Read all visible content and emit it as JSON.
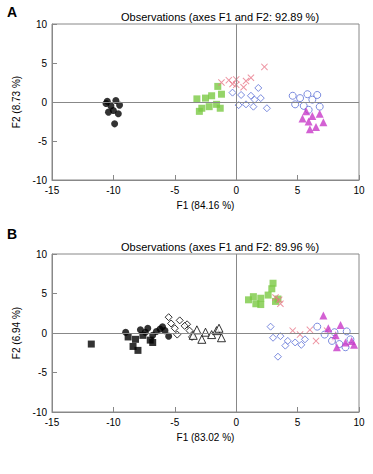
{
  "chart_data": [
    {
      "type": "scatter",
      "panel": "A",
      "title": "Observations (axes F1 and F2: 92.89 %)",
      "xlabel": "F1 (84.16 %)",
      "ylabel": "F2 (8.73 %)",
      "xlim": [
        -15,
        10
      ],
      "xticks": [
        -15,
        -10,
        -5,
        0,
        5,
        10
      ],
      "ylim": [
        -10,
        10
      ],
      "yticks": [
        -10,
        -5,
        0,
        5,
        10
      ],
      "grid": false,
      "legend": "none",
      "series": [
        {
          "color": "#000000",
          "marker": "circle",
          "x": [
            -10.5,
            -9.8,
            -10.2,
            -9.5,
            -10.0,
            -10.4,
            -9.6,
            -9.9,
            -10.6
          ],
          "y": [
            0.1,
            0.2,
            -0.5,
            -0.4,
            -1.1,
            -1.3,
            -1.5,
            -2.8,
            -0.2
          ]
        },
        {
          "color": "#7ac943",
          "marker": "square",
          "x": [
            -3.2,
            -2.5,
            -2.0,
            -1.2,
            -1.5,
            -2.8,
            -2.2,
            -1.6,
            -3.0,
            -1.3
          ],
          "y": [
            0.4,
            0.5,
            0.8,
            1.0,
            2.0,
            -0.8,
            -0.6,
            -0.3,
            -1.2,
            -0.8
          ]
        },
        {
          "color": "#e8788a",
          "marker": "x",
          "x": [
            -1.2,
            -0.6,
            0.0,
            -0.3,
            0.8,
            2.3,
            1.2,
            0.6,
            0.0
          ],
          "y": [
            2.5,
            2.8,
            2.9,
            2.3,
            2.7,
            4.5,
            3.1,
            1.9,
            2.2
          ]
        },
        {
          "color": "#5b6fd6",
          "marker": "diamond-open",
          "x": [
            -0.3,
            0.4,
            1.2,
            1.5,
            0.8,
            1.4,
            2.0,
            2.5,
            1.8,
            0.2
          ],
          "y": [
            1.2,
            0.9,
            0.8,
            0.3,
            -0.3,
            -0.6,
            0.5,
            -0.8,
            1.8,
            -0.4
          ]
        },
        {
          "color": "#5b6fd6",
          "marker": "circle-open",
          "x": [
            4.6,
            5.2,
            5.8,
            6.2,
            6.6,
            5.5,
            6.8,
            4.8,
            5.9
          ],
          "y": [
            0.8,
            0.5,
            1.0,
            0.3,
            0.9,
            -0.5,
            -0.6,
            -0.3,
            -1.0
          ]
        },
        {
          "color": "#c839c8",
          "marker": "triangle",
          "x": [
            5.7,
            6.2,
            6.8,
            5.9,
            6.5,
            7.1,
            6.0,
            5.4
          ],
          "y": [
            -1.2,
            -1.8,
            -1.5,
            -2.5,
            -3.2,
            -2.6,
            -3.5,
            -2.1
          ]
        }
      ]
    },
    {
      "type": "scatter",
      "panel": "B",
      "title": "Observations (axes F1 and F2: 89.96 %)",
      "xlabel": "F1 (83.02 %)",
      "ylabel": "F2 (6.94 %)",
      "xlim": [
        -15,
        10
      ],
      "xticks": [
        -15,
        -10,
        -5,
        0,
        5,
        10
      ],
      "ylim": [
        -10,
        10
      ],
      "yticks": [
        -10,
        -5,
        0,
        5,
        10
      ],
      "grid": false,
      "legend": "none",
      "series": [
        {
          "color": "#000000",
          "marker": "square",
          "x": [
            -11.8,
            -8.8,
            -8.4,
            -8.0,
            -7.6,
            -7.0,
            -6.8,
            -8.2
          ],
          "y": [
            -1.4,
            -0.5,
            -1.7,
            -2.2,
            -0.3,
            -0.9,
            -1.2,
            -0.8
          ]
        },
        {
          "color": "#000000",
          "marker": "circle",
          "x": [
            -9.0,
            -7.8,
            -7.2,
            -6.5,
            -6.2,
            -5.8,
            -6.8,
            -5.5,
            -7.4,
            -6.0
          ],
          "y": [
            0.1,
            0.4,
            0.6,
            0.2,
            0.5,
            0.3,
            -0.3,
            -0.4,
            0.1,
            0.8
          ]
        },
        {
          "color": "#000000",
          "marker": "diamond-open",
          "x": [
            -5.5,
            -4.6,
            -4.0,
            -5.0,
            -3.8,
            -4.8,
            -3.6,
            -4.2,
            -5.3
          ],
          "y": [
            2.0,
            1.6,
            1.1,
            0.6,
            0.3,
            -0.2,
            -0.5,
            0.9,
            1.2
          ]
        },
        {
          "color": "#000000",
          "marker": "triangle-open",
          "x": [
            -3.2,
            -2.5,
            -2.0,
            -1.6,
            -1.2,
            -2.8,
            -1.4,
            -3.5
          ],
          "y": [
            0.4,
            0.1,
            -0.2,
            0.3,
            -0.6,
            -0.8,
            0.6,
            -0.3
          ]
        },
        {
          "color": "#7ac943",
          "marker": "square",
          "x": [
            1.0,
            1.4,
            2.0,
            2.6,
            3.0,
            2.9,
            3.2,
            2.0,
            1.6,
            3.4
          ],
          "y": [
            4.2,
            4.6,
            4.4,
            4.8,
            6.3,
            5.6,
            4.0,
            3.6,
            3.7,
            4.3
          ]
        },
        {
          "color": "#e8788a",
          "marker": "x",
          "x": [
            3.2,
            3.6,
            3.5,
            4.6,
            5.2,
            6.0,
            7.4,
            7.9,
            6.5
          ],
          "y": [
            4.5,
            3.7,
            4.2,
            0.3,
            -0.2,
            0.4,
            0.3,
            -0.9,
            -1.0
          ]
        },
        {
          "color": "#5b6fd6",
          "marker": "diamond-open",
          "x": [
            2.8,
            3.6,
            4.2,
            4.0,
            3.4,
            4.8,
            5.3,
            5.6,
            3.0
          ],
          "y": [
            0.8,
            -0.4,
            -1.0,
            -1.6,
            -3.0,
            -1.2,
            -1.5,
            -0.8,
            -0.6
          ]
        },
        {
          "color": "#5b6fd6",
          "marker": "circle-open",
          "x": [
            6.6,
            7.2,
            8.0,
            8.4,
            8.9,
            9.3,
            7.8,
            9.0
          ],
          "y": [
            0.8,
            -0.2,
            0.1,
            -1.4,
            -1.8,
            -0.8,
            -1.0,
            0.2
          ]
        },
        {
          "color": "#c839c8",
          "marker": "triangle",
          "x": [
            7.1,
            8.5,
            8.9,
            9.4,
            8.1,
            7.5,
            9.6,
            8.2
          ],
          "y": [
            2.2,
            1.0,
            -1.2,
            -1.0,
            -0.3,
            0.6,
            -1.5,
            -1.8
          ]
        }
      ]
    }
  ]
}
